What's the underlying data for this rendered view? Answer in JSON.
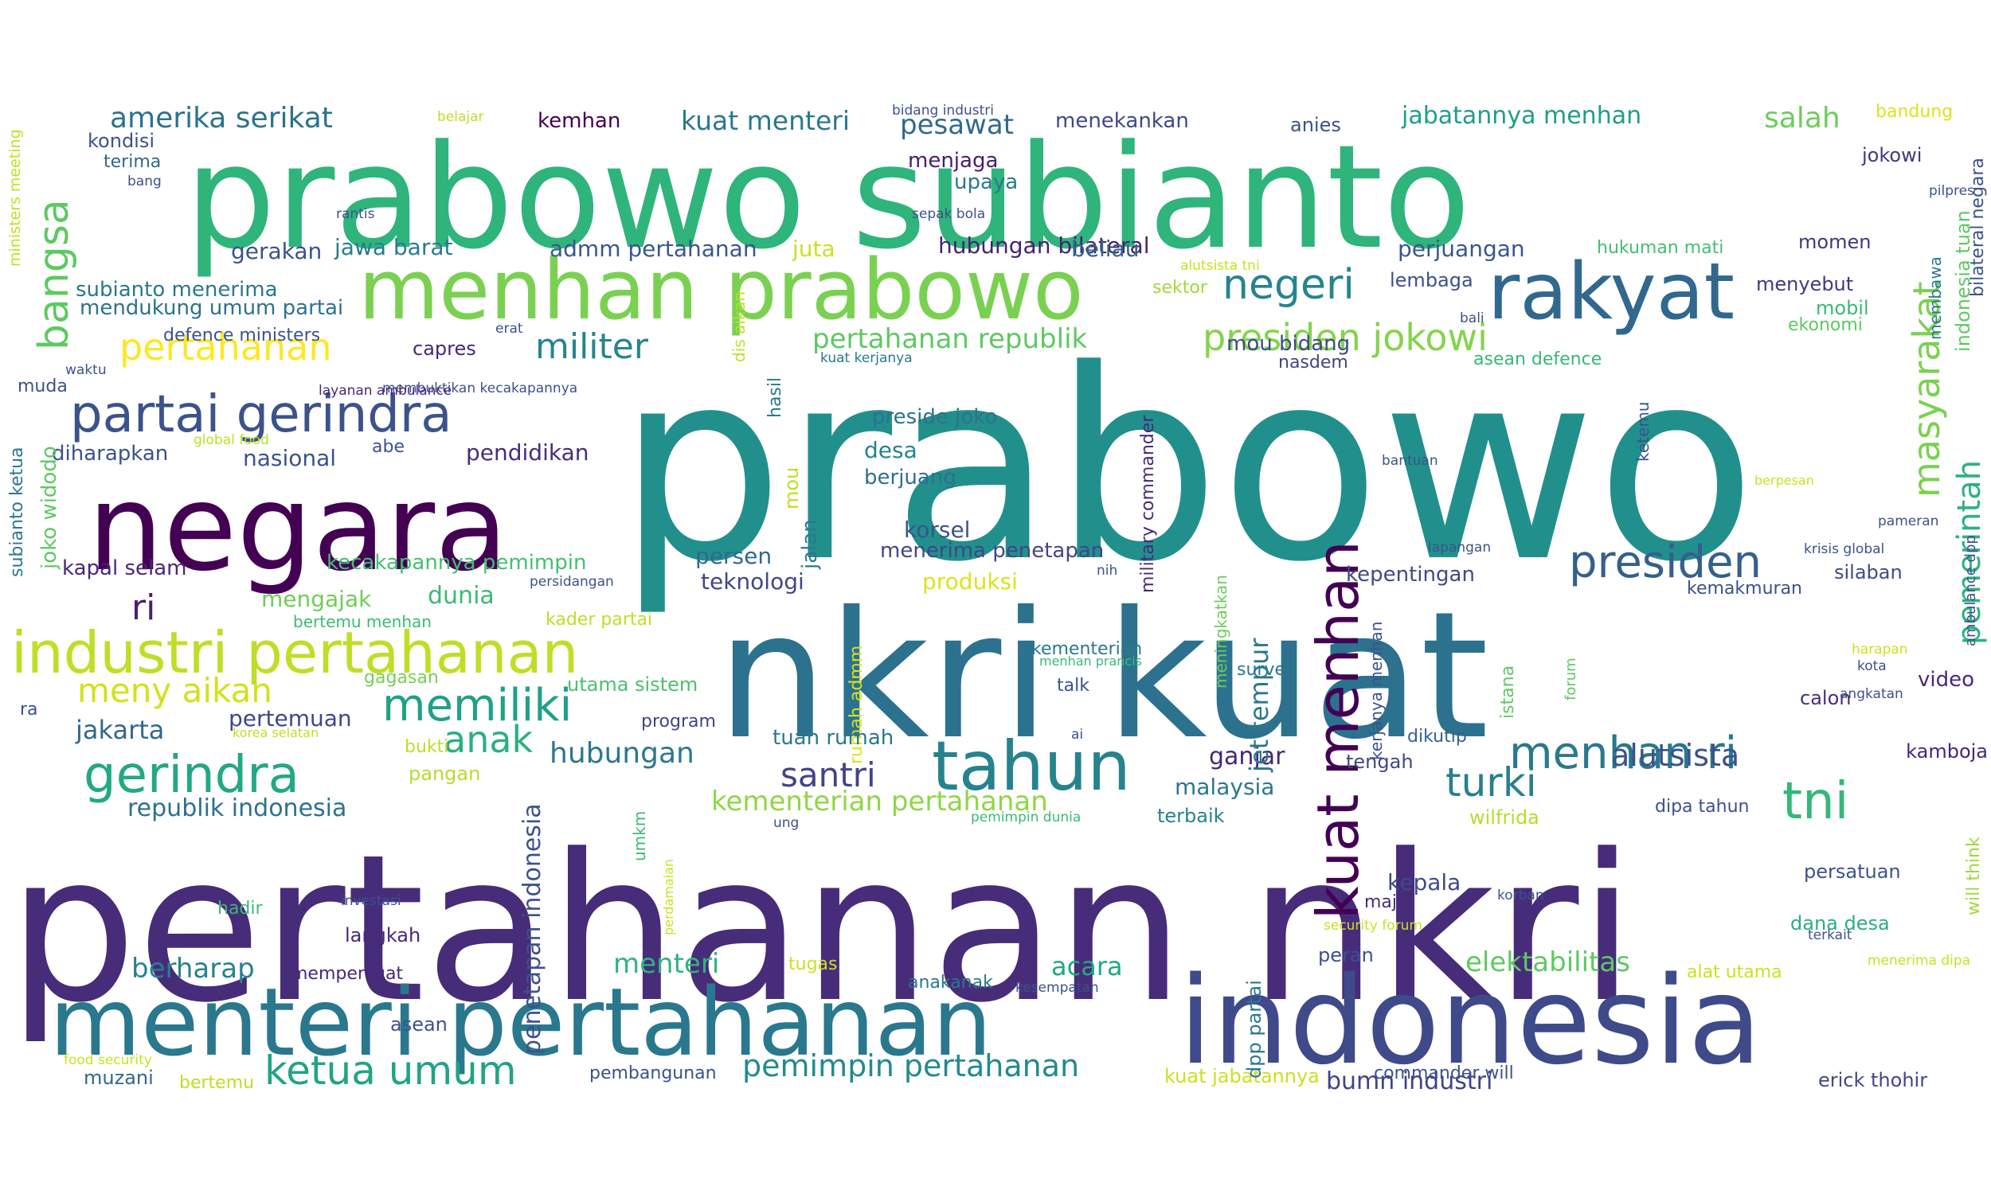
{
  "words": [
    {
      "text": "prabowo",
      "color": "#21908c"
    },
    {
      "text": "pertahanan nkri",
      "color": "#472c7a"
    },
    {
      "text": "prabowo subianto",
      "color": "#2fb47c"
    },
    {
      "text": "nkri kuat",
      "color": "#2c728e"
    },
    {
      "text": "indonesia",
      "color": "#3e4a89"
    },
    {
      "text": "negara",
      "color": "#440154"
    },
    {
      "text": "menteri pertahanan",
      "color": "#2a788e"
    },
    {
      "text": "menhan prabowo",
      "color": "#7ad151"
    },
    {
      "text": "rakyat",
      "color": "#31688e"
    },
    {
      "text": "industri pertahanan",
      "color": "#bddf26"
    },
    {
      "text": "partai gerindra",
      "color": "#3b528b"
    },
    {
      "text": "tahun",
      "color": "#25838e"
    },
    {
      "text": "kuat menhan",
      "color": "#440154"
    },
    {
      "text": "gerindra",
      "color": "#22a884"
    },
    {
      "text": "memiliki",
      "color": "#1fa187"
    },
    {
      "text": "menhan ri",
      "color": "#2a788e"
    },
    {
      "text": "presiden",
      "color": "#355f8d"
    },
    {
      "text": "bangsa",
      "color": "#5ec962"
    },
    {
      "text": "tni",
      "color": "#35b779"
    },
    {
      "text": "ketua umum",
      "color": "#20a486"
    },
    {
      "text": "masyarakat",
      "color": "#7ad151"
    },
    {
      "text": "pemerintah",
      "color": "#2db27d"
    },
    {
      "text": "presiden jokowi",
      "color": "#84d44b"
    },
    {
      "text": "santri",
      "color": "#414487"
    },
    {
      "text": "negeri",
      "color": "#25848e"
    },
    {
      "text": "turki",
      "color": "#277f8e"
    },
    {
      "text": "pertahanan",
      "color": "#fde725"
    },
    {
      "text": "meny aikan",
      "color": "#d2e21b"
    },
    {
      "text": "anak",
      "color": "#2ab07f"
    },
    {
      "text": "militer",
      "color": "#25858e"
    },
    {
      "text": "amerika serikat",
      "color": "#2c728e"
    },
    {
      "text": "alutsista",
      "color": "#3b528b"
    },
    {
      "text": "kuat menteri",
      "color": "#2a788e"
    },
    {
      "text": "salah",
      "color": "#6ccd5a"
    },
    {
      "text": "ri",
      "color": "#481f70"
    },
    {
      "text": "pertahanan republik",
      "color": "#5ec962"
    },
    {
      "text": "kementerian pertahanan",
      "color": "#8fd744"
    },
    {
      "text": "pemimpin pertahanan",
      "color": "#238a8d"
    },
    {
      "text": "hubungan",
      "color": "#2a788e"
    },
    {
      "text": "jakarta",
      "color": "#31688e"
    },
    {
      "text": "penetapan indonesia",
      "color": "#3b528b"
    },
    {
      "text": "pesawat",
      "color": "#306a8e"
    },
    {
      "text": "jabatannya menhan",
      "color": "#1f9e89"
    },
    {
      "text": "menteri",
      "color": "#2fb47c"
    },
    {
      "text": "elektabilitas",
      "color": "#5ec962"
    },
    {
      "text": "acara",
      "color": "#22a884"
    },
    {
      "text": "berharap",
      "color": "#26828e"
    },
    {
      "text": "ganjar",
      "color": "#482576"
    },
    {
      "text": "dunia",
      "color": "#3aba76"
    },
    {
      "text": "kepala",
      "color": "#3e4a89"
    },
    {
      "text": "bumn industri",
      "color": "#404387"
    },
    {
      "text": "republik indonesia",
      "color": "#2d708e"
    },
    {
      "text": "produksi",
      "color": "#dde318"
    },
    {
      "text": "jet tempur",
      "color": "#2a788e"
    },
    {
      "text": "teknologi",
      "color": "#3f4788"
    },
    {
      "text": "mengajak",
      "color": "#6ece58"
    },
    {
      "text": "pertemuan",
      "color": "#3f4788"
    },
    {
      "text": "gerakan",
      "color": "#3b528b"
    },
    {
      "text": "jawa barat",
      "color": "#287c8e"
    },
    {
      "text": "admm pertahanan",
      "color": "#39568c"
    },
    {
      "text": "juta",
      "color": "#cae11f"
    },
    {
      "text": "hubungan bilateral",
      "color": "#482173"
    },
    {
      "text": "beliau",
      "color": "#33638d"
    },
    {
      "text": "perjuangan",
      "color": "#39568c"
    },
    {
      "text": "nasional",
      "color": "#3b528b"
    },
    {
      "text": "pendidikan",
      "color": "#472d7b"
    },
    {
      "text": "kapal selam",
      "color": "#482878"
    },
    {
      "text": "kecakapannya pemimpin",
      "color": "#44bf70"
    },
    {
      "text": "persen",
      "color": "#31688e"
    },
    {
      "text": "menerima penetapan",
      "color": "#404688"
    },
    {
      "text": "korsel",
      "color": "#3b528b"
    },
    {
      "text": "kepentingan",
      "color": "#3e4a89"
    },
    {
      "text": "desa",
      "color": "#26828e"
    },
    {
      "text": "berjuang",
      "color": "#2d708e"
    },
    {
      "text": "preside joko",
      "color": "#2c728e"
    },
    {
      "text": "upaya",
      "color": "#2a788e"
    },
    {
      "text": "menjaga",
      "color": "#481c6e"
    },
    {
      "text": "menekankan",
      "color": "#3e4a89"
    },
    {
      "text": "anies",
      "color": "#3b528b"
    },
    {
      "text": "kemhan",
      "color": "#440154"
    },
    {
      "text": "subianto menerima",
      "color": "#2a788e"
    },
    {
      "text": "mendukung umum partai",
      "color": "#2c728e"
    },
    {
      "text": "defence ministers",
      "color": "#3b528b"
    },
    {
      "text": "capres",
      "color": "#482677"
    },
    {
      "text": "muda",
      "color": "#3b528b"
    },
    {
      "text": "diharapkan",
      "color": "#3b528b"
    },
    {
      "text": "mou bidang",
      "color": "#3e4a89"
    },
    {
      "text": "lembaga",
      "color": "#3b528b"
    },
    {
      "text": "menyebut",
      "color": "#453781"
    },
    {
      "text": "mobil",
      "color": "#3aba76"
    },
    {
      "text": "ekonomi",
      "color": "#5ec962"
    },
    {
      "text": "momen",
      "color": "#453581"
    },
    {
      "text": "hukuman mati",
      "color": "#44bf70"
    },
    {
      "text": "sektor",
      "color": "#a0da39"
    },
    {
      "text": "asean defence",
      "color": "#36b878"
    },
    {
      "text": "nasdem",
      "color": "#414487"
    },
    {
      "text": "jokowi",
      "color": "#453581"
    },
    {
      "text": "bandung",
      "color": "#dde318"
    },
    {
      "text": "kondisi",
      "color": "#3b528b"
    },
    {
      "text": "terima",
      "color": "#31688e"
    },
    {
      "text": "kader partai",
      "color": "#bddf26"
    },
    {
      "text": "utama sistem",
      "color": "#4ac16d"
    },
    {
      "text": "rumah admm",
      "color": "#dde318"
    },
    {
      "text": "program",
      "color": "#414487"
    },
    {
      "text": "tuan rumah",
      "color": "#2a788e"
    },
    {
      "text": "gagasan",
      "color": "#75d054"
    },
    {
      "text": "bukti",
      "color": "#bddf26"
    },
    {
      "text": "pangan",
      "color": "#b5de2b"
    },
    {
      "text": "malaysia",
      "color": "#2a788e"
    },
    {
      "text": "terbaik",
      "color": "#26828e"
    },
    {
      "text": "dikutip",
      "color": "#33638d"
    },
    {
      "text": "tengah",
      "color": "#3f4788"
    },
    {
      "text": "wilfrida",
      "color": "#b5de2b"
    },
    {
      "text": "dipa tahun",
      "color": "#3b528b"
    },
    {
      "text": "persatuan",
      "color": "#3b528b"
    },
    {
      "text": "dana desa",
      "color": "#29af7f"
    },
    {
      "text": "video",
      "color": "#482878"
    },
    {
      "text": "kamboja",
      "color": "#482677"
    },
    {
      "text": "calon",
      "color": "#472d7b"
    },
    {
      "text": "silaban",
      "color": "#3e4a89"
    },
    {
      "text": "kemakmuran",
      "color": "#3b528b"
    },
    {
      "text": "erick thohir",
      "color": "#3f4788"
    },
    {
      "text": "alat utama",
      "color": "#cae11f"
    },
    {
      "text": "peran",
      "color": "#3b528b"
    },
    {
      "text": "maju",
      "color": "#472d7b"
    },
    {
      "text": "langkah",
      "color": "#482878"
    },
    {
      "text": "hadir",
      "color": "#3aba76"
    },
    {
      "text": "memperkuat",
      "color": "#482878"
    },
    {
      "text": "tugas",
      "color": "#cae11f"
    },
    {
      "text": "anakanak",
      "color": "#2a788e"
    },
    {
      "text": "asean",
      "color": "#3b528b"
    },
    {
      "text": "muzani",
      "color": "#31688e"
    },
    {
      "text": "bertemu",
      "color": "#bddf26"
    },
    {
      "text": "pembangunan",
      "color": "#3b528b"
    },
    {
      "text": "kuat jabatannya",
      "color": "#cae11f"
    },
    {
      "text": "commander will",
      "color": "#3b528b"
    },
    {
      "text": "kementerian",
      "color": "#2a788e"
    },
    {
      "text": "talk",
      "color": "#3b528b"
    },
    {
      "text": "survei",
      "color": "#2a788e"
    },
    {
      "text": "joko widodo",
      "color": "#5ec962"
    },
    {
      "text": "subianto ketua",
      "color": "#2a788e"
    },
    {
      "text": "ministers meeting",
      "color": "#c2df23"
    },
    {
      "text": "military commander",
      "color": "#482878"
    },
    {
      "text": "dpp partai",
      "color": "#2a788e"
    },
    {
      "text": "meningkatkan",
      "color": "#6ccd5a"
    },
    {
      "text": "kerjanya menhan",
      "color": "#3b528b"
    },
    {
      "text": "istana",
      "color": "#5ec962"
    },
    {
      "text": "umkm",
      "color": "#3aba76"
    },
    {
      "text": "jalan",
      "color": "#2a788e"
    },
    {
      "text": "mou",
      "color": "#bddf26"
    },
    {
      "text": "hasil",
      "color": "#2a788e"
    },
    {
      "text": "dis aikan",
      "color": "#bddf26"
    },
    {
      "text": "ketemu",
      "color": "#3b528b"
    },
    {
      "text": "membawa",
      "color": "#2a788e"
    },
    {
      "text": "indonesia tuan",
      "color": "#5ec962"
    },
    {
      "text": "bilateral negara",
      "color": "#3b528b"
    },
    {
      "text": "will think",
      "color": "#a0da39"
    },
    {
      "text": "ambulance dpp",
      "color": "#3b528b"
    },
    {
      "text": "belajar",
      "color": "#bddf26"
    },
    {
      "text": "bidang industri",
      "color": "#3b528b"
    },
    {
      "text": "sepak bola",
      "color": "#3b528b"
    },
    {
      "text": "alutsista tni",
      "color": "#cae11f"
    },
    {
      "text": "bang",
      "color": "#3b528b"
    },
    {
      "text": "rantis",
      "color": "#3b528b"
    },
    {
      "text": "erat",
      "color": "#3b528b"
    },
    {
      "text": "waktu",
      "color": "#3b528b"
    },
    {
      "text": "membuktikan kecakapannya",
      "color": "#3b528b"
    },
    {
      "text": "kuat kerjanya",
      "color": "#2a788e"
    },
    {
      "text": "layanan ambulance",
      "color": "#482878"
    },
    {
      "text": "global food",
      "color": "#bddf26"
    },
    {
      "text": "abe",
      "color": "#3b528b"
    },
    {
      "text": "persidangan",
      "color": "#3b528b"
    },
    {
      "text": "bertemu menhan",
      "color": "#3aba76"
    },
    {
      "text": "korea selatan",
      "color": "#bddf26"
    },
    {
      "text": "ra",
      "color": "#3b528b"
    },
    {
      "text": "ai",
      "color": "#3b528b"
    },
    {
      "text": "ung",
      "color": "#3b528b"
    },
    {
      "text": "pemimpin dunia",
      "color": "#3aba76"
    },
    {
      "text": "investasi",
      "color": "#3b528b"
    },
    {
      "text": "perdamaian",
      "color": "#cae11f"
    },
    {
      "text": "security forum",
      "color": "#cae11f"
    },
    {
      "text": "korban",
      "color": "#3b528b"
    },
    {
      "text": "kesempatan",
      "color": "#3b528b"
    },
    {
      "text": "terkait",
      "color": "#3b528b"
    },
    {
      "text": "menerima dipa",
      "color": "#cae11f"
    },
    {
      "text": "food security",
      "color": "#cae11f"
    },
    {
      "text": "nih",
      "color": "#3b528b"
    },
    {
      "text": "lapangan",
      "color": "#3b528b"
    },
    {
      "text": "bantuan",
      "color": "#3b528b"
    },
    {
      "text": "menhan prancis",
      "color": "#3aba76"
    },
    {
      "text": "forum",
      "color": "#5ec962"
    },
    {
      "text": "bali",
      "color": "#3b528b"
    },
    {
      "text": "pilpres",
      "color": "#3b528b"
    },
    {
      "text": "berpesan",
      "color": "#cae11f"
    },
    {
      "text": "pameran",
      "color": "#3b528b"
    },
    {
      "text": "krisis global",
      "color": "#3b528b"
    },
    {
      "text": "harapan",
      "color": "#cae11f"
    },
    {
      "text": "kota",
      "color": "#3b528b"
    },
    {
      "text": "angkatan",
      "color": "#3b528b"
    }
  ]
}
